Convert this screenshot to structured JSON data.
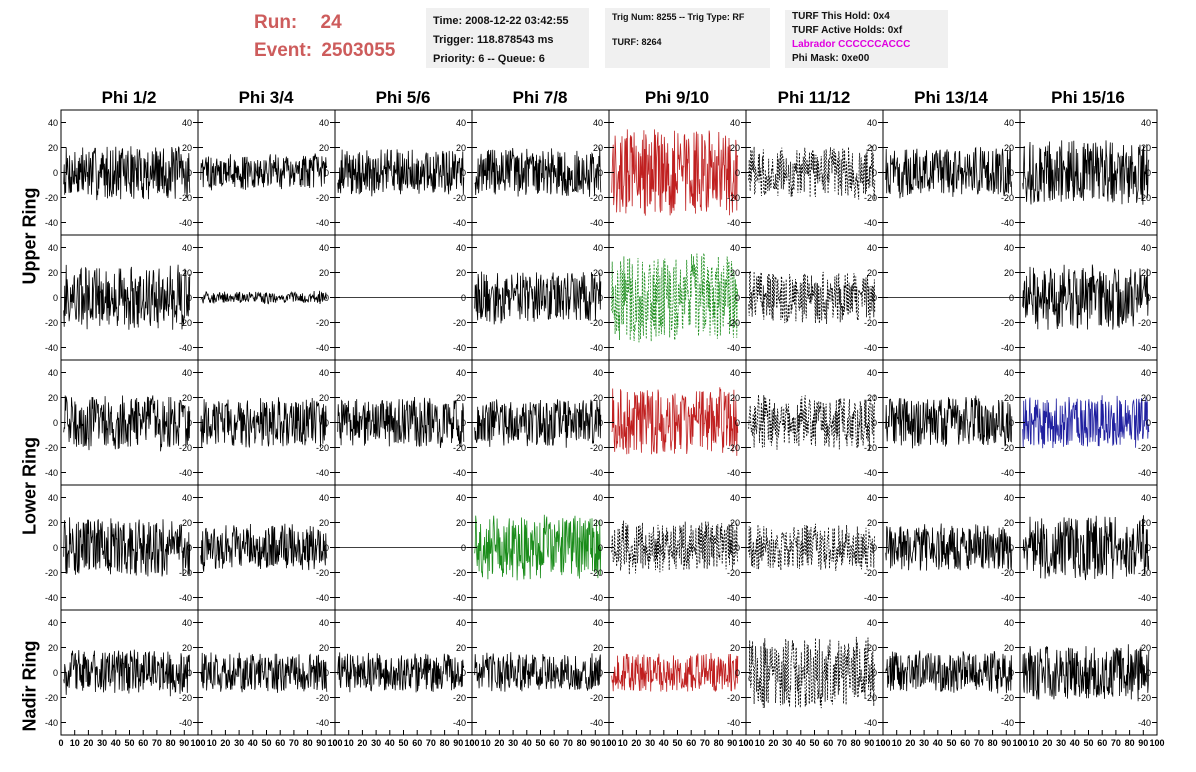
{
  "header": {
    "run_label": "Run:",
    "run_value": "24",
    "event_label": "Event:",
    "event_value": "2503055"
  },
  "info": {
    "time": "Time: 2008-12-22 03:42:55",
    "trigger": "Trigger: 118.878543 ms",
    "priority": "Priority: 6 -- Queue: 6",
    "trig_num": "Trig Num: 8255 -- Trig Type: RF",
    "turf": "TURF: 8264",
    "turf_this_hold": "TURF This Hold: 0x4",
    "turf_active_holds": "TURF Active Holds: 0xf",
    "labrador": "Labrador CCCCCCACCC",
    "phi_mask": "Phi Mask: 0xe00"
  },
  "colors": {
    "header_red": "#cd5c5c",
    "labrador": "#e000e0",
    "trace_black": "#000000",
    "trace_red": "#c02020",
    "trace_green": "#1a8c1a",
    "trace_blue": "#2020a0",
    "info_bg": "#f0f0f0"
  },
  "chart_data": {
    "type": "line",
    "columns": [
      "Phi 1/2",
      "Phi 3/4",
      "Phi 5/6",
      "Phi 7/8",
      "Phi 9/10",
      "Phi 11/12",
      "Phi 13/14",
      "Phi 15/16"
    ],
    "rows": [
      "Upper Ring",
      "Upper Ring",
      "Lower Ring",
      "Lower Ring",
      "Nadir Ring"
    ],
    "row_labels": [
      "Upper Ring",
      "Lower Ring",
      "Nadir Ring"
    ],
    "xlim": [
      0,
      100
    ],
    "ylim": [
      -50,
      50
    ],
    "y_ticks": [
      -40,
      -20,
      0,
      20,
      40
    ],
    "x_tick_labels": [
      "0",
      "10",
      "20",
      "30",
      "40",
      "50",
      "60",
      "70",
      "80",
      "90",
      "100"
    ],
    "grid": false,
    "style_codes": {
      "k": "solid-black",
      "r": "solid-red",
      "g": "solid-green",
      "b": "solid-blue",
      "gd": "dashed-green",
      "kd": "dashed-black",
      "flat": "flat-zero"
    },
    "panels": [
      [
        {
          "style": "k",
          "amp": 17
        },
        {
          "style": "k",
          "amp": 11
        },
        {
          "style": "k",
          "amp": 14
        },
        {
          "style": "k",
          "amp": 15
        },
        {
          "style": "r",
          "amp": 28
        },
        {
          "style": "kd",
          "amp": 16
        },
        {
          "style": "k",
          "amp": 15
        },
        {
          "style": "k",
          "amp": 20
        }
      ],
      [
        {
          "style": "k",
          "amp": 20
        },
        {
          "style": "k",
          "amp": 3
        },
        {
          "style": "flat",
          "amp": 0
        },
        {
          "style": "k",
          "amp": 16
        },
        {
          "style": "gd",
          "amp": 28
        },
        {
          "style": "kd",
          "amp": 16
        },
        {
          "style": "flat",
          "amp": 0
        },
        {
          "style": "k",
          "amp": 20
        }
      ],
      [
        {
          "style": "k",
          "amp": 17
        },
        {
          "style": "k",
          "amp": 15
        },
        {
          "style": "k",
          "amp": 15
        },
        {
          "style": "k",
          "amp": 15
        },
        {
          "style": "r",
          "amp": 22
        },
        {
          "style": "kd",
          "amp": 17
        },
        {
          "style": "k",
          "amp": 16
        },
        {
          "style": "b",
          "amp": 16
        }
      ],
      [
        {
          "style": "k",
          "amp": 18
        },
        {
          "style": "k",
          "amp": 14
        },
        {
          "style": "flat",
          "amp": 0
        },
        {
          "style": "g",
          "amp": 20
        },
        {
          "style": "kd",
          "amp": 16
        },
        {
          "style": "kd",
          "amp": 14
        },
        {
          "style": "k",
          "amp": 15
        },
        {
          "style": "k",
          "amp": 20
        }
      ],
      [
        {
          "style": "k",
          "amp": 14
        },
        {
          "style": "k",
          "amp": 12
        },
        {
          "style": "k",
          "amp": 12
        },
        {
          "style": "k",
          "amp": 12
        },
        {
          "style": "r",
          "amp": 12
        },
        {
          "style": "kd",
          "amp": 22
        },
        {
          "style": "k",
          "amp": 13
        },
        {
          "style": "k",
          "amp": 17
        }
      ]
    ]
  }
}
